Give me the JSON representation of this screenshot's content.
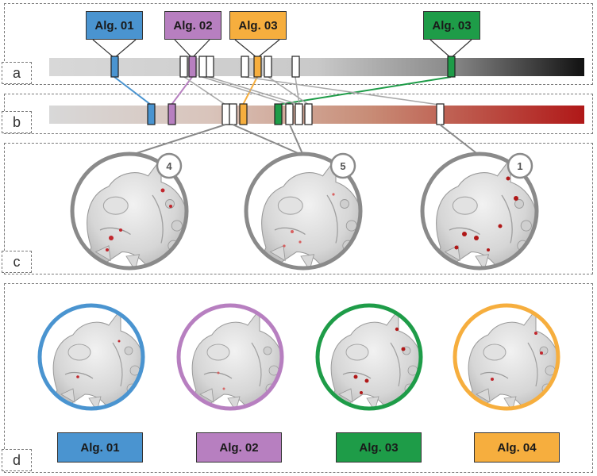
{
  "panels": [
    {
      "label": "a"
    },
    {
      "label": "b"
    },
    {
      "label": "c"
    },
    {
      "label": "d"
    }
  ],
  "top_labels": [
    {
      "text": "Alg. 01",
      "color": "#4a94d0"
    },
    {
      "text": "Alg. 02",
      "color": "#b77fc0"
    },
    {
      "text": "Alg. 03",
      "color": "#f6ae3e"
    },
    {
      "text": "Alg. 03",
      "color": "#1e9c48"
    }
  ],
  "magnifier_ranks": [
    "4",
    "5",
    "1"
  ],
  "bottom_labels": [
    {
      "text": "Alg. 01",
      "color": "#4a94d0"
    },
    {
      "text": "Alg. 02",
      "color": "#b77fc0"
    },
    {
      "text": "Alg. 03",
      "color": "#1e9c48"
    },
    {
      "text": "Alg. 04",
      "color": "#f6ae3e"
    }
  ],
  "colors": {
    "alg01": "#4a94d0",
    "alg02": "#b77fc0",
    "alg03_orange": "#f6ae3e",
    "alg03_green": "#1e9c48",
    "bar_a_start": "#d8d8d8",
    "bar_a_end": "#111111",
    "bar_b_start": "#d8d8d8",
    "bar_b_end": "#b01818",
    "connector_gray": "#a8a8a8",
    "magnifier_gray": "#8a8a8a"
  }
}
